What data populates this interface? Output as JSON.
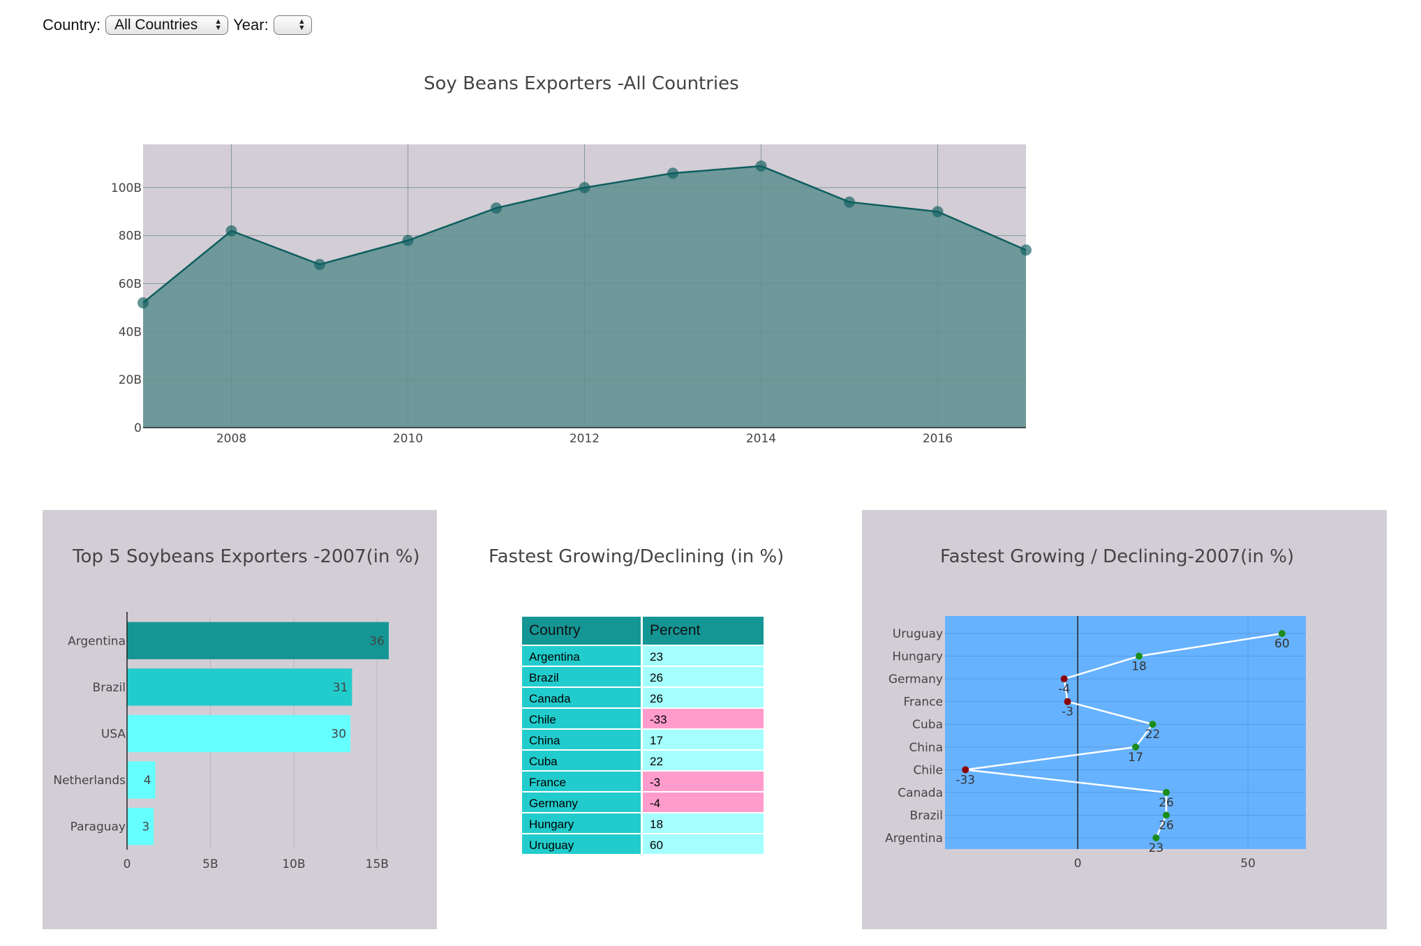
{
  "controls": {
    "country_label": "Country:",
    "country_value": "All Countries",
    "year_label": "Year:",
    "year_value": ""
  },
  "colors": {
    "panel_bg": "#d3cdd5",
    "area_fill": "#6e9899",
    "area_line": "#0e5e5f",
    "bar_top": "#149695",
    "bar_mid": "#22cccc",
    "bar_light": "#66ffff",
    "dot_bg": "#66b2ff",
    "positive_dot": "#1a8c1a",
    "negative_dot": "#8b0000",
    "cell_positive": "#a5ffff",
    "cell_negative": "#ff9ccc"
  },
  "chart_data": [
    {
      "type": "area",
      "title": "Soy Beans Exporters -All Countries",
      "x": [
        2007,
        2008,
        2009,
        2010,
        2011,
        2012,
        2013,
        2014,
        2015,
        2016,
        2017
      ],
      "values": [
        52,
        82,
        68,
        78,
        91.5,
        100,
        106,
        109,
        94,
        90,
        74
      ],
      "value_unit": "B",
      "xlim": [
        2007,
        2017
      ],
      "ylim": [
        0,
        118
      ],
      "xticks": [
        2008,
        2010,
        2012,
        2014,
        2016
      ],
      "yticks": [
        0,
        20,
        40,
        60,
        80,
        100
      ],
      "ytick_labels": [
        "0",
        "20B",
        "40B",
        "60B",
        "80B",
        "100B"
      ],
      "grid": true
    },
    {
      "type": "bar",
      "orientation": "horizontal",
      "title": "Top 5 Soybeans Exporters -2007(in %)",
      "categories": [
        "Argentina",
        "Brazil",
        "USA",
        "Netherlands",
        "Paraguay"
      ],
      "values": [
        15.7,
        13.5,
        13.4,
        1.7,
        1.6
      ],
      "value_unit": "B",
      "labels": [
        "36",
        "31",
        "30",
        "4",
        "3"
      ],
      "xlim": [
        0,
        17.5
      ],
      "xticks": [
        0,
        5,
        10,
        15
      ],
      "xtick_labels": [
        "0",
        "5B",
        "10B",
        "15B"
      ],
      "grid": true
    },
    {
      "type": "table",
      "title": "Fastest Growing/Declining (in %)",
      "columns": [
        "Country",
        "Percent"
      ],
      "rows": [
        [
          "Argentina",
          "23"
        ],
        [
          "Brazil",
          "26"
        ],
        [
          "Canada",
          "26"
        ],
        [
          "Chile",
          "-33"
        ],
        [
          "China",
          "17"
        ],
        [
          "Cuba",
          "22"
        ],
        [
          "France",
          "-3"
        ],
        [
          "Germany",
          "-4"
        ],
        [
          "Hungary",
          "18"
        ],
        [
          "Uruguay",
          "60"
        ]
      ]
    },
    {
      "type": "scatter",
      "title": "Fastest Growing / Declining-2007(in %)",
      "categories": [
        "Uruguay",
        "Hungary",
        "Germany",
        "France",
        "Cuba",
        "China",
        "Chile",
        "Canada",
        "Brazil",
        "Argentina"
      ],
      "values": [
        60,
        18,
        -4,
        -3,
        22,
        17,
        -33,
        26,
        26,
        23
      ],
      "xlim": [
        -39,
        67
      ],
      "xticks": [
        0,
        50
      ],
      "grid": true,
      "connected": true
    }
  ]
}
